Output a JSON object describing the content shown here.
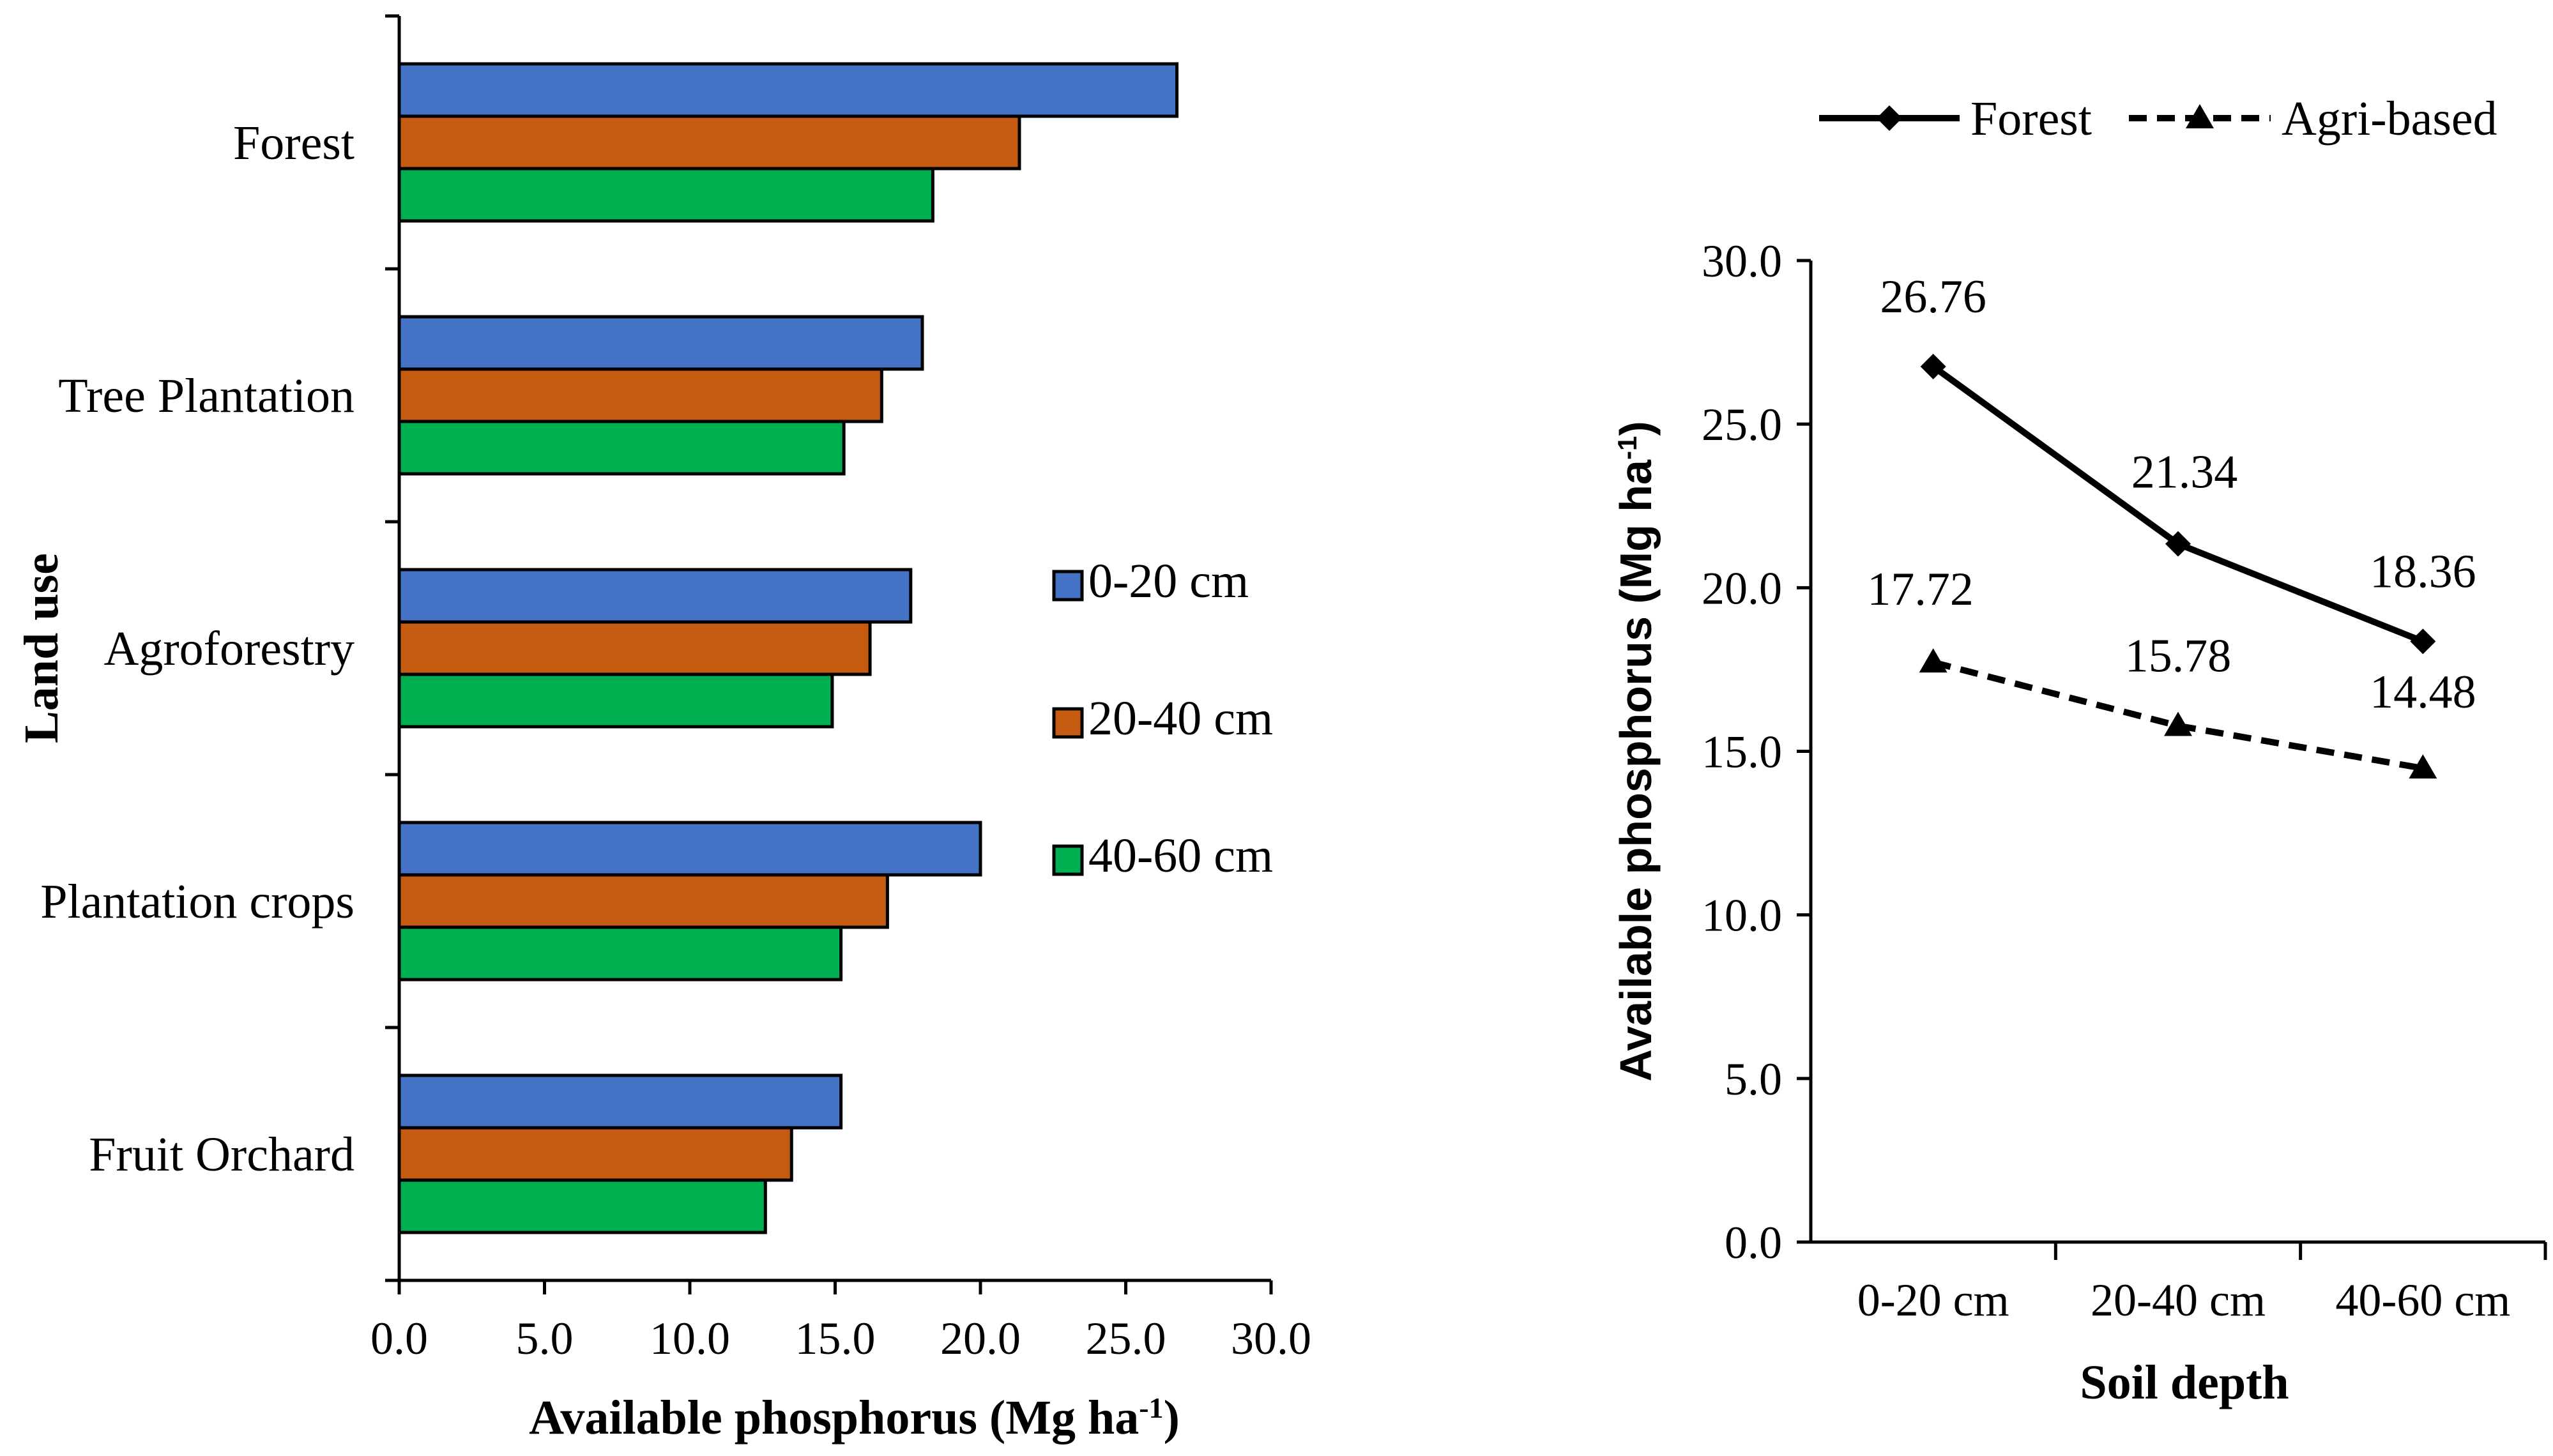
{
  "chart_data": [
    {
      "type": "bar",
      "orientation": "horizontal",
      "categories": [
        "Forest",
        "Tree Plantation",
        "Agroforestry",
        "Plantation crops",
        "Fruit Orchard"
      ],
      "series": [
        {
          "name": "0-20 cm",
          "color": "#4472C4",
          "values": [
            26.76,
            18.0,
            17.6,
            20.0,
            15.2
          ]
        },
        {
          "name": "20-40 cm",
          "color": "#C55A11",
          "values": [
            21.34,
            16.6,
            16.2,
            16.8,
            13.5
          ]
        },
        {
          "name": "40-60 cm",
          "color": "#00B050",
          "values": [
            18.36,
            15.3,
            14.9,
            15.2,
            12.6
          ]
        }
      ],
      "xlabel": "Available phosphorus (Mg ha",
      "xlabel_sup": "-1",
      "xlabel_end": ")",
      "ylabel": "Land use",
      "xlim": [
        0,
        30
      ],
      "xticks": [
        "0.0",
        "5.0",
        "10.0",
        "15.0",
        "20.0",
        "25.0",
        "30.0"
      ],
      "legend_position": "right"
    },
    {
      "type": "line",
      "categories": [
        "0-20 cm",
        "20-40 cm",
        "40-60 cm"
      ],
      "series": [
        {
          "name": "Forest",
          "values": [
            26.76,
            21.34,
            18.36
          ],
          "labels": [
            "26.76",
            "21.34",
            "18.36"
          ],
          "marker": "diamond",
          "dash": "solid",
          "color": "#000000"
        },
        {
          "name": "Agri-based",
          "values": [
            17.72,
            15.78,
            14.48
          ],
          "labels": [
            "17.72",
            "15.78",
            "14.48"
          ],
          "marker": "triangle",
          "dash": "dashed",
          "color": "#000000"
        }
      ],
      "xlabel": "Soil depth",
      "ylabel": "Available phosphorus (Mg ha",
      "ylabel_sup": "-1",
      "ylabel_end": ")",
      "ylim": [
        0,
        30
      ],
      "yticks": [
        "0.0",
        "5.0",
        "10.0",
        "15.0",
        "20.0",
        "25.0",
        "30.0"
      ],
      "legend_position": "top"
    }
  ]
}
